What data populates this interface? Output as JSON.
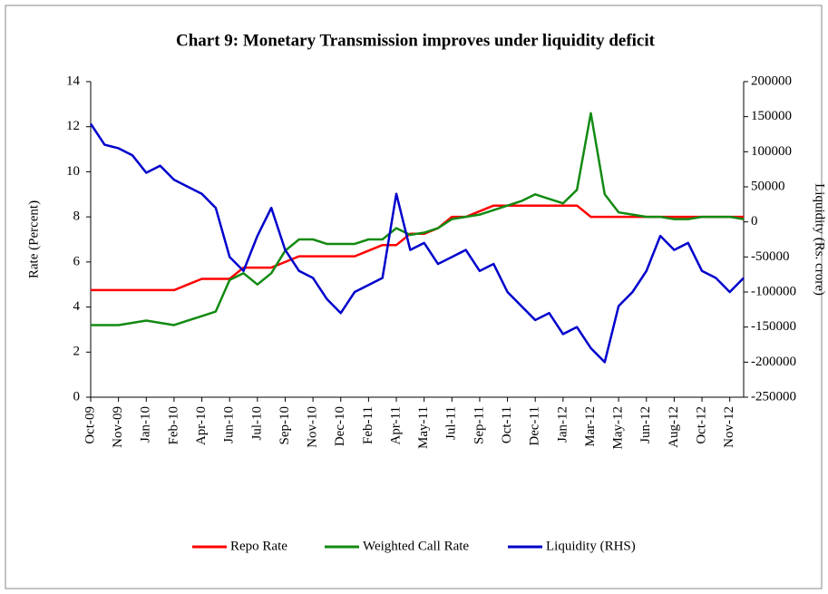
{
  "chart_data": {
    "type": "line",
    "title": "Chart 9: Monetary Transmission improves under liquidity deficit",
    "y_label": "Rate (Percent)",
    "y2_label": "Liquidity (Rs. crore)",
    "categories": [
      "Oct-09",
      null,
      "Nov-09",
      null,
      "Jan-10",
      null,
      "Feb-10",
      null,
      "Apr-10",
      null,
      "Jun-10",
      null,
      "Jul-10",
      null,
      "Sep-10",
      null,
      "Nov-10",
      null,
      "Dec-10",
      null,
      "Feb-11",
      null,
      "Apr-11",
      null,
      "May-11",
      null,
      "Jul-11",
      null,
      "Sep-11",
      null,
      "Oct-11",
      null,
      "Dec-11",
      null,
      "Jan-12",
      null,
      "Mar-12",
      null,
      "May-12",
      null,
      "Jun-12",
      null,
      "Aug-12",
      null,
      "Oct-12",
      null,
      "Nov-12",
      null
    ],
    "ylim": [
      0,
      14
    ],
    "yticks": [
      0,
      2,
      4,
      6,
      8,
      10,
      12,
      14
    ],
    "y2lim": [
      -250000,
      200000
    ],
    "y2ticks": [
      -250000,
      -200000,
      -150000,
      -100000,
      -50000,
      0,
      50000,
      100000,
      150000,
      200000
    ],
    "legend": "bottom",
    "series": [
      {
        "name": "Repo Rate",
        "color": "#ff0000",
        "values": [
          4.75,
          4.75,
          4.75,
          4.75,
          4.75,
          4.75,
          4.75,
          5.0,
          5.25,
          5.25,
          5.25,
          5.75,
          5.75,
          5.75,
          6.0,
          6.25,
          6.25,
          6.25,
          6.25,
          6.25,
          6.5,
          6.75,
          6.75,
          7.25,
          7.25,
          7.5,
          8.0,
          8.0,
          8.25,
          8.5,
          8.5,
          8.5,
          8.5,
          8.5,
          8.5,
          8.5,
          8.0,
          8.0,
          8.0,
          8.0,
          8.0,
          8.0,
          8.0,
          8.0,
          8.0,
          8.0,
          8.0,
          8.0
        ]
      },
      {
        "name": "Weighted Call Rate",
        "color": "#128a12",
        "values": [
          3.2,
          3.2,
          3.2,
          3.3,
          3.4,
          3.3,
          3.2,
          3.4,
          3.6,
          3.8,
          5.2,
          5.5,
          5.0,
          5.5,
          6.5,
          7.0,
          7.0,
          6.8,
          6.8,
          6.8,
          7.0,
          7.0,
          7.5,
          7.2,
          7.3,
          7.5,
          7.9,
          8.0,
          8.1,
          8.3,
          8.5,
          8.7,
          9.0,
          8.8,
          8.6,
          9.2,
          12.6,
          9.0,
          8.2,
          8.1,
          8.0,
          8.0,
          7.9,
          7.9,
          8.0,
          8.0,
          8.0,
          7.9
        ]
      },
      {
        "name": "Liquidity (RHS)",
        "color": "#0000cc",
        "axis": "y2",
        "values": [
          140000,
          110000,
          105000,
          95000,
          70000,
          80000,
          60000,
          50000,
          40000,
          20000,
          -50000,
          -70000,
          -20000,
          20000,
          -40000,
          -70000,
          -80000,
          -110000,
          -130000,
          -100000,
          -90000,
          -80000,
          40000,
          -40000,
          -30000,
          -60000,
          -50000,
          -40000,
          -70000,
          -60000,
          -100000,
          -120000,
          -140000,
          -130000,
          -160000,
          -150000,
          -180000,
          -200000,
          -120000,
          -100000,
          -70000,
          -20000,
          -40000,
          -30000,
          -70000,
          -80000,
          -100000,
          -80000
        ]
      }
    ]
  }
}
